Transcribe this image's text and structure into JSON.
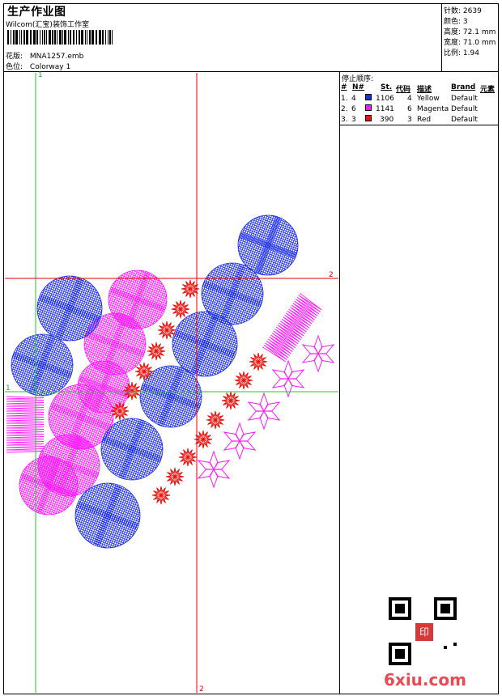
{
  "header": {
    "title": "生产作业图",
    "company": "Wilcom(汇宝)装饰工作室",
    "design_label": "花版:",
    "design_value": "MNA1257.emb",
    "colorway_label": "色位:",
    "colorway_value": "Colorway 1"
  },
  "stats": [
    {
      "label": "针数:",
      "value": "2639"
    },
    {
      "label": "颜色:",
      "value": "3"
    },
    {
      "label": "高度:",
      "value": "72.1 mm"
    },
    {
      "label": "宽度:",
      "value": "71.0 mm"
    },
    {
      "label": "比例:",
      "value": "1.94"
    }
  ],
  "stop_sequence": {
    "title": "停止顺序:",
    "headers": [
      "#",
      "N#",
      "St.",
      "代码",
      "描述",
      "Brand",
      "元素"
    ],
    "rows": [
      {
        "idx": "1.",
        "needle": "4",
        "stitches": "1106",
        "code": "4",
        "desc": "Yellow",
        "brand": "Default",
        "color": "#1a2ce6"
      },
      {
        "idx": "2.",
        "needle": "6",
        "stitches": "1141",
        "code": "6",
        "desc": "Magenta",
        "brand": "Default",
        "color": "#ff1aff"
      },
      {
        "idx": "3.",
        "needle": "3",
        "stitches": "390",
        "code": "3",
        "desc": "Red",
        "brand": "Default",
        "color": "#e8140f"
      }
    ]
  },
  "axes": {
    "label_1": "1",
    "label_2": "2"
  },
  "watermark": {
    "text": "6xiu.com",
    "seal": "印"
  },
  "colors": {
    "blue": "#1a2ce6",
    "magenta": "#ff1aff",
    "red": "#e8140f",
    "guide_green": "#22cc22",
    "guide_red": "#e00000"
  }
}
